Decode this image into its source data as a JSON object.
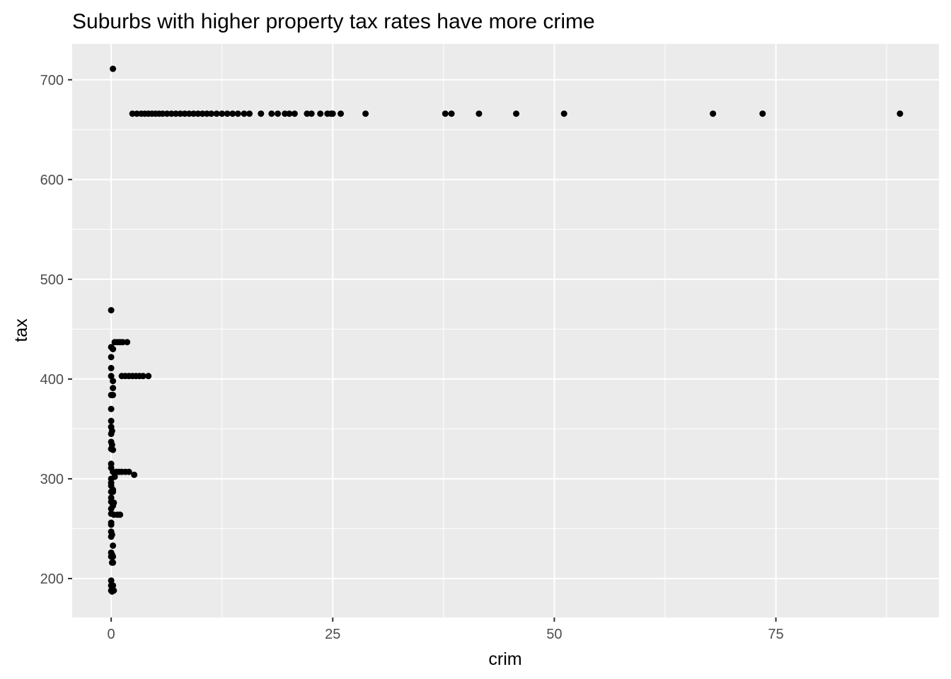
{
  "chart_data": {
    "type": "scatter",
    "title": "Suburbs with higher property tax rates have more crime",
    "xlabel": "crim",
    "ylabel": "tax",
    "xlim": [
      -4.4,
      93.4
    ],
    "ylim": [
      161,
      736
    ],
    "x_ticks": [
      0,
      25,
      50,
      75
    ],
    "y_ticks": [
      200,
      300,
      400,
      500,
      600,
      700
    ],
    "grid": true,
    "background": "#EBEBEB",
    "grid_color": "#FFFFFF",
    "point_color": "#000000",
    "points": [
      {
        "x": 0.2,
        "y": 711
      },
      {
        "x": 0.0,
        "y": 469
      },
      {
        "x": 2.4,
        "y": 666
      },
      {
        "x": 2.9,
        "y": 666
      },
      {
        "x": 3.4,
        "y": 666
      },
      {
        "x": 3.8,
        "y": 666
      },
      {
        "x": 4.2,
        "y": 666
      },
      {
        "x": 4.6,
        "y": 666
      },
      {
        "x": 5.0,
        "y": 666
      },
      {
        "x": 5.4,
        "y": 666
      },
      {
        "x": 5.8,
        "y": 666
      },
      {
        "x": 6.3,
        "y": 666
      },
      {
        "x": 6.8,
        "y": 666
      },
      {
        "x": 7.3,
        "y": 666
      },
      {
        "x": 7.8,
        "y": 666
      },
      {
        "x": 8.3,
        "y": 666
      },
      {
        "x": 8.8,
        "y": 666
      },
      {
        "x": 9.3,
        "y": 666
      },
      {
        "x": 9.8,
        "y": 666
      },
      {
        "x": 10.3,
        "y": 666
      },
      {
        "x": 10.8,
        "y": 666
      },
      {
        "x": 11.3,
        "y": 666
      },
      {
        "x": 11.9,
        "y": 666
      },
      {
        "x": 12.5,
        "y": 666
      },
      {
        "x": 13.1,
        "y": 666
      },
      {
        "x": 13.7,
        "y": 666
      },
      {
        "x": 14.3,
        "y": 666
      },
      {
        "x": 15.0,
        "y": 666
      },
      {
        "x": 15.6,
        "y": 666
      },
      {
        "x": 16.9,
        "y": 666
      },
      {
        "x": 18.1,
        "y": 666
      },
      {
        "x": 18.8,
        "y": 666
      },
      {
        "x": 19.6,
        "y": 666
      },
      {
        "x": 20.1,
        "y": 666
      },
      {
        "x": 20.7,
        "y": 666
      },
      {
        "x": 22.1,
        "y": 666
      },
      {
        "x": 22.6,
        "y": 666
      },
      {
        "x": 23.6,
        "y": 666
      },
      {
        "x": 24.4,
        "y": 666
      },
      {
        "x": 24.8,
        "y": 666
      },
      {
        "x": 25.0,
        "y": 666
      },
      {
        "x": 25.9,
        "y": 666
      },
      {
        "x": 28.7,
        "y": 666
      },
      {
        "x": 37.7,
        "y": 666
      },
      {
        "x": 38.4,
        "y": 666
      },
      {
        "x": 41.5,
        "y": 666
      },
      {
        "x": 45.7,
        "y": 666
      },
      {
        "x": 51.1,
        "y": 666
      },
      {
        "x": 67.9,
        "y": 666
      },
      {
        "x": 73.5,
        "y": 666
      },
      {
        "x": 89.0,
        "y": 666
      },
      {
        "x": 0.0,
        "y": 432
      },
      {
        "x": 0.2,
        "y": 430
      },
      {
        "x": 0.4,
        "y": 437
      },
      {
        "x": 0.7,
        "y": 437
      },
      {
        "x": 1.0,
        "y": 437
      },
      {
        "x": 1.3,
        "y": 437
      },
      {
        "x": 1.8,
        "y": 437
      },
      {
        "x": 0.0,
        "y": 422
      },
      {
        "x": 0.0,
        "y": 411
      },
      {
        "x": 0.0,
        "y": 403
      },
      {
        "x": 0.2,
        "y": 398
      },
      {
        "x": 1.2,
        "y": 403
      },
      {
        "x": 1.6,
        "y": 403
      },
      {
        "x": 2.0,
        "y": 403
      },
      {
        "x": 2.4,
        "y": 403
      },
      {
        "x": 2.8,
        "y": 403
      },
      {
        "x": 3.2,
        "y": 403
      },
      {
        "x": 3.6,
        "y": 403
      },
      {
        "x": 4.2,
        "y": 403
      },
      {
        "x": 0.2,
        "y": 391
      },
      {
        "x": 0.0,
        "y": 384
      },
      {
        "x": 0.2,
        "y": 384
      },
      {
        "x": 0.0,
        "y": 370
      },
      {
        "x": 0.0,
        "y": 358
      },
      {
        "x": 0.0,
        "y": 352
      },
      {
        "x": 0.1,
        "y": 348
      },
      {
        "x": 0.0,
        "y": 345
      },
      {
        "x": 0.0,
        "y": 337
      },
      {
        "x": 0.1,
        "y": 334
      },
      {
        "x": 0.0,
        "y": 330
      },
      {
        "x": 0.2,
        "y": 329
      },
      {
        "x": 0.0,
        "y": 315
      },
      {
        "x": 0.0,
        "y": 311
      },
      {
        "x": 0.2,
        "y": 307
      },
      {
        "x": 0.4,
        "y": 305
      },
      {
        "x": 0.6,
        "y": 307
      },
      {
        "x": 0.9,
        "y": 307
      },
      {
        "x": 1.2,
        "y": 307
      },
      {
        "x": 1.6,
        "y": 307
      },
      {
        "x": 2.0,
        "y": 307
      },
      {
        "x": 2.6,
        "y": 304
      },
      {
        "x": 0.4,
        "y": 302
      },
      {
        "x": 0.0,
        "y": 300
      },
      {
        "x": 0.0,
        "y": 296
      },
      {
        "x": 0.0,
        "y": 293
      },
      {
        "x": 0.2,
        "y": 289
      },
      {
        "x": 0.0,
        "y": 287
      },
      {
        "x": 0.2,
        "y": 287
      },
      {
        "x": 0.0,
        "y": 281
      },
      {
        "x": 0.0,
        "y": 277
      },
      {
        "x": 0.3,
        "y": 276
      },
      {
        "x": 0.2,
        "y": 273
      },
      {
        "x": 0.0,
        "y": 270
      },
      {
        "x": 0.0,
        "y": 265
      },
      {
        "x": 0.3,
        "y": 264
      },
      {
        "x": 0.7,
        "y": 264
      },
      {
        "x": 1.0,
        "y": 264
      },
      {
        "x": 0.0,
        "y": 256
      },
      {
        "x": 0.0,
        "y": 254
      },
      {
        "x": 0.0,
        "y": 247
      },
      {
        "x": 0.1,
        "y": 244
      },
      {
        "x": 0.0,
        "y": 242
      },
      {
        "x": 0.2,
        "y": 233
      },
      {
        "x": 0.0,
        "y": 226
      },
      {
        "x": 0.1,
        "y": 224
      },
      {
        "x": 0.0,
        "y": 222
      },
      {
        "x": 0.2,
        "y": 222
      },
      {
        "x": 0.1,
        "y": 216
      },
      {
        "x": 0.2,
        "y": 216
      },
      {
        "x": 0.0,
        "y": 198
      },
      {
        "x": 0.0,
        "y": 193
      },
      {
        "x": 0.2,
        "y": 193
      },
      {
        "x": 0.0,
        "y": 188
      },
      {
        "x": 0.3,
        "y": 188
      },
      {
        "x": 0.1,
        "y": 187
      }
    ]
  }
}
